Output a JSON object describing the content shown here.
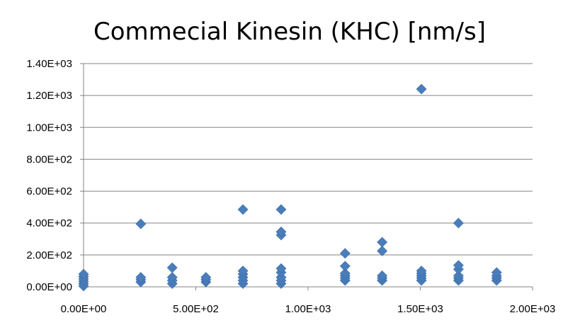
{
  "chart_data": {
    "type": "scatter",
    "title": "Commecial Kinesin (KHC) [nm/s]",
    "xlabel": "",
    "ylabel": "",
    "xlim": [
      0,
      2000
    ],
    "ylim": [
      0,
      1400
    ],
    "x_ticks": [
      0,
      500,
      1000,
      1500,
      2000
    ],
    "x_tick_labels": [
      "0.00E+00",
      "5.00E+02",
      "1.00E+03",
      "1.50E+03",
      "2.00E+03"
    ],
    "y_ticks": [
      0,
      200,
      400,
      600,
      800,
      1000,
      1200,
      1400
    ],
    "y_tick_labels": [
      "0.00E+00",
      "2.00E+02",
      "4.00E+02",
      "6.00E+02",
      "8.00E+02",
      "1.00E+03",
      "1.20E+03",
      "1.40E+03"
    ],
    "grid": "horizontal",
    "legend": "none",
    "marker": "diamond",
    "color": "#4a7ebb",
    "series": [
      {
        "points": [
          [
            0,
            5
          ],
          [
            0,
            20
          ],
          [
            0,
            35
          ],
          [
            0,
            50
          ],
          [
            0,
            65
          ],
          [
            0,
            80
          ],
          [
            255,
            30
          ],
          [
            255,
            45
          ],
          [
            255,
            60
          ],
          [
            255,
            395
          ],
          [
            395,
            20
          ],
          [
            395,
            40
          ],
          [
            395,
            60
          ],
          [
            395,
            120
          ],
          [
            545,
            30
          ],
          [
            545,
            45
          ],
          [
            545,
            60
          ],
          [
            710,
            20
          ],
          [
            710,
            40
          ],
          [
            710,
            60
          ],
          [
            710,
            80
          ],
          [
            710,
            100
          ],
          [
            710,
            485
          ],
          [
            880,
            20
          ],
          [
            880,
            40
          ],
          [
            880,
            60
          ],
          [
            880,
            90
          ],
          [
            880,
            115
          ],
          [
            880,
            325
          ],
          [
            880,
            345
          ],
          [
            880,
            485
          ],
          [
            1165,
            40
          ],
          [
            1165,
            55
          ],
          [
            1165,
            70
          ],
          [
            1165,
            85
          ],
          [
            1165,
            130
          ],
          [
            1165,
            210
          ],
          [
            1330,
            40
          ],
          [
            1330,
            55
          ],
          [
            1330,
            70
          ],
          [
            1330,
            225
          ],
          [
            1330,
            280
          ],
          [
            1505,
            40
          ],
          [
            1505,
            55
          ],
          [
            1505,
            70
          ],
          [
            1505,
            85
          ],
          [
            1505,
            100
          ],
          [
            1505,
            1240
          ],
          [
            1670,
            40
          ],
          [
            1670,
            55
          ],
          [
            1670,
            70
          ],
          [
            1670,
            110
          ],
          [
            1670,
            135
          ],
          [
            1670,
            400
          ],
          [
            1840,
            40
          ],
          [
            1840,
            55
          ],
          [
            1840,
            70
          ],
          [
            1840,
            90
          ]
        ]
      }
    ]
  }
}
